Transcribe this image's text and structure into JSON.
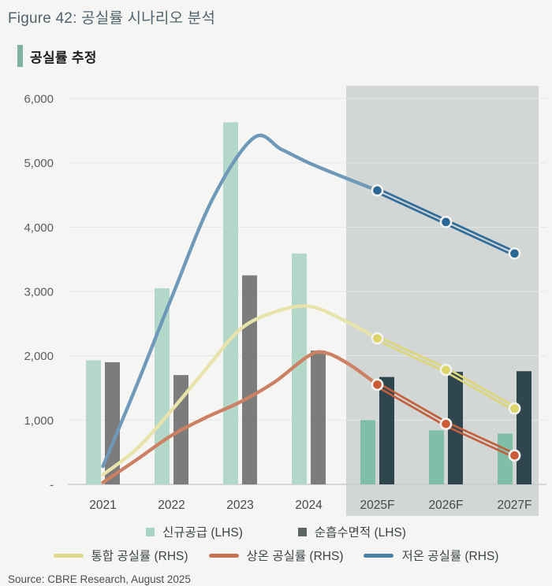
{
  "header": {
    "figure_title": "Figure 42: 공실률 시나리오 분석",
    "section_label": "공실률 추정"
  },
  "source": {
    "text": "Source: CBRE Research, August 2025"
  },
  "chart_data": {
    "type": "combo-bar-line",
    "title": "공실률 추정",
    "categories": [
      "2021",
      "2022",
      "2023",
      "2024",
      "2025F",
      "2026F",
      "2027F"
    ],
    "forecast_start_index": 4,
    "y_axis": {
      "lim": [
        0,
        6000
      ],
      "ticks": [
        {
          "value": 0,
          "label": "-"
        },
        {
          "value": 1000,
          "label": "1,000"
        },
        {
          "value": 2000,
          "label": "2,000"
        },
        {
          "value": 3000,
          "label": "3,000"
        },
        {
          "value": 4000,
          "label": "4,000"
        },
        {
          "value": 5000,
          "label": "5,000"
        },
        {
          "value": 6000,
          "label": "6,000"
        }
      ]
    },
    "right_axis": {
      "visible": false
    },
    "grid": true,
    "legend_position": "bottom",
    "bar_series": [
      {
        "name": "신규공급 (LHS)",
        "key": "new-supply",
        "values": [
          1930,
          3050,
          5630,
          3590,
          1000,
          840,
          790
        ],
        "color_hist": "#b3d8ca",
        "color_forecast": "#7fbfa8"
      },
      {
        "name": "순흡수면적 (LHS)",
        "key": "net-absorption",
        "values": [
          1900,
          1700,
          3250,
          2080,
          1670,
          1750,
          1760
        ],
        "color_hist": "#7c7c7c",
        "color_forecast": "#30464e"
      }
    ],
    "line_series": [
      {
        "name": "통합 공실률 (RHS)",
        "key": "integrated-vacancy",
        "values": [
          150,
          1150,
          2410,
          2770,
          2270,
          1780,
          1180
        ],
        "curve_points": [
          [
            0,
            150
          ],
          [
            0.5,
            560
          ],
          [
            1,
            1150
          ],
          [
            1.5,
            1790
          ],
          [
            2,
            2410
          ],
          [
            2.5,
            2680
          ],
          [
            3,
            2770
          ],
          [
            3.5,
            2560
          ],
          [
            4,
            2270
          ]
        ],
        "color_hist": "#e8e3ab",
        "color_forecast": "#ddd678",
        "dot_color": "#dcd466"
      },
      {
        "name": "상온 공실률 (RHS)",
        "key": "ambient-vacancy",
        "values": [
          30,
          760,
          1280,
          2000,
          1550,
          940,
          450
        ],
        "curve_points": [
          [
            0,
            30
          ],
          [
            0.5,
            390
          ],
          [
            1,
            760
          ],
          [
            1.5,
            1040
          ],
          [
            2,
            1280
          ],
          [
            2.5,
            1590
          ],
          [
            3,
            2000
          ],
          [
            3.25,
            2045
          ],
          [
            3.6,
            1860
          ],
          [
            4,
            1550
          ]
        ],
        "color_hist": "#cd8164",
        "color_forecast": "#c2603d",
        "dot_color": "#c95b35"
      },
      {
        "name": "저온 공실률 (RHS)",
        "key": "cold-vacancy",
        "values": [
          280,
          2900,
          5300,
          5000,
          4570,
          4080,
          3590
        ],
        "curve_points": [
          [
            0,
            280
          ],
          [
            0.5,
            1560
          ],
          [
            1,
            2900
          ],
          [
            1.6,
            4440
          ],
          [
            2.2,
            5390
          ],
          [
            2.6,
            5210
          ],
          [
            3,
            5000
          ],
          [
            3.5,
            4780
          ],
          [
            4,
            4570
          ]
        ],
        "color_hist": "#6f99b8",
        "color_forecast": "#2f6d9b",
        "dot_color": "#2b6795"
      }
    ],
    "legend": {
      "bars": [
        {
          "label": "신규공급 (LHS)",
          "color": "#a9d3c5",
          "key": "new-supply"
        },
        {
          "label": "순흡수면적 (LHS)",
          "color": "#5d6565",
          "key": "net-absorption"
        }
      ],
      "lines": [
        {
          "label": "통합 공실률 (RHS)",
          "color": "#ded989",
          "key": "integrated-vacancy"
        },
        {
          "label": "상온 공실률 (RHS)",
          "color": "#c6714f",
          "key": "ambient-vacancy"
        },
        {
          "label": "저온 공실률 (RHS)",
          "color": "#4d80a5",
          "key": "cold-vacancy"
        }
      ]
    },
    "colors": {
      "background": "#f5f5f4",
      "forecast_band": "#d2d6d5",
      "gridline": "#e4e7e6",
      "axis_line": "#c9cccb",
      "tick_label": "#585d60",
      "x_label": "#44494c",
      "marker_ring": "#f2f2f0"
    }
  }
}
